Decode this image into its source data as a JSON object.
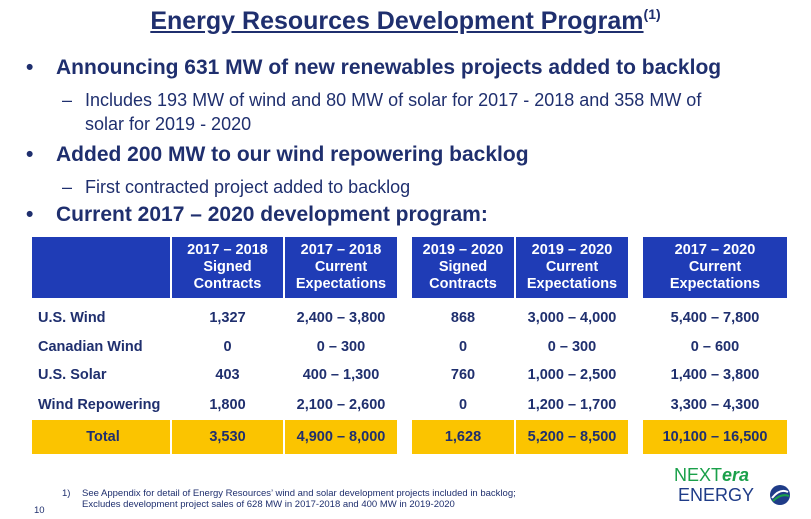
{
  "title": "Energy Resources Development Program",
  "title_footnote": "(1)",
  "bullets": [
    {
      "text": "Announcing 631 MW of new renewables projects added to backlog"
    },
    {
      "text": "Added 200 MW to our wind repowering backlog"
    },
    {
      "text": "Current 2017 – 2020 development program:"
    }
  ],
  "subs": {
    "sub1_line1": "Includes 193 MW of wind and 80 MW of solar for 2017 - 2018 and 358 MW of",
    "sub1_line2": "solar for 2019 - 2020",
    "sub2": "First contracted project added to backlog"
  },
  "bullet_marker": "•",
  "dash_marker": "–",
  "table": {
    "headers": [
      [
        "2017 – 2018",
        "Signed",
        "Contracts"
      ],
      [
        "2017 – 2018",
        "Current",
        "Expectations"
      ],
      [
        "2019 – 2020",
        "Signed",
        "Contracts"
      ],
      [
        "2019 – 2020",
        "Current",
        "Expectations"
      ],
      [
        "2017 – 2020",
        "Current",
        "Expectations"
      ]
    ],
    "rows": [
      {
        "label": "U.S. Wind",
        "values": [
          "1,327",
          "2,400 – 3,800",
          "868",
          "3,000 – 4,000",
          "5,400 – 7,800"
        ]
      },
      {
        "label": "Canadian Wind",
        "values": [
          "0",
          "0 – 300",
          "0",
          "0 – 300",
          "0 – 600"
        ]
      },
      {
        "label": "U.S. Solar",
        "values": [
          "403",
          "400 – 1,300",
          "760",
          "1,000 – 2,500",
          "1,400 – 3,800"
        ]
      },
      {
        "label": "Wind Repowering",
        "values": [
          "1,800",
          "2,100 – 2,600",
          "0",
          "1,200 – 1,700",
          "3,300 – 4,300"
        ]
      }
    ],
    "total": {
      "label": "Total",
      "values": [
        "3,530",
        "4,900 – 8,000",
        "1,628",
        "5,200 – 8,500",
        "10,100 – 16,500"
      ]
    }
  },
  "footnote": {
    "num": "1)",
    "line1": "See Appendix for detail of Energy Resources’ wind and solar development projects included in backlog;",
    "line2": "Excludes development project sales of 628 MW in 2017-2018 and 400 MW in 2019-2020"
  },
  "page_number": "10",
  "logo": {
    "part1": "NEXT",
    "part2": "era",
    "part3": "ENERGY"
  },
  "colors": {
    "header_blue": "#1f3cb6",
    "total_yellow": "#fbc400",
    "text_navy": "#1f2f6e",
    "logo_green": "#1aa04a"
  }
}
